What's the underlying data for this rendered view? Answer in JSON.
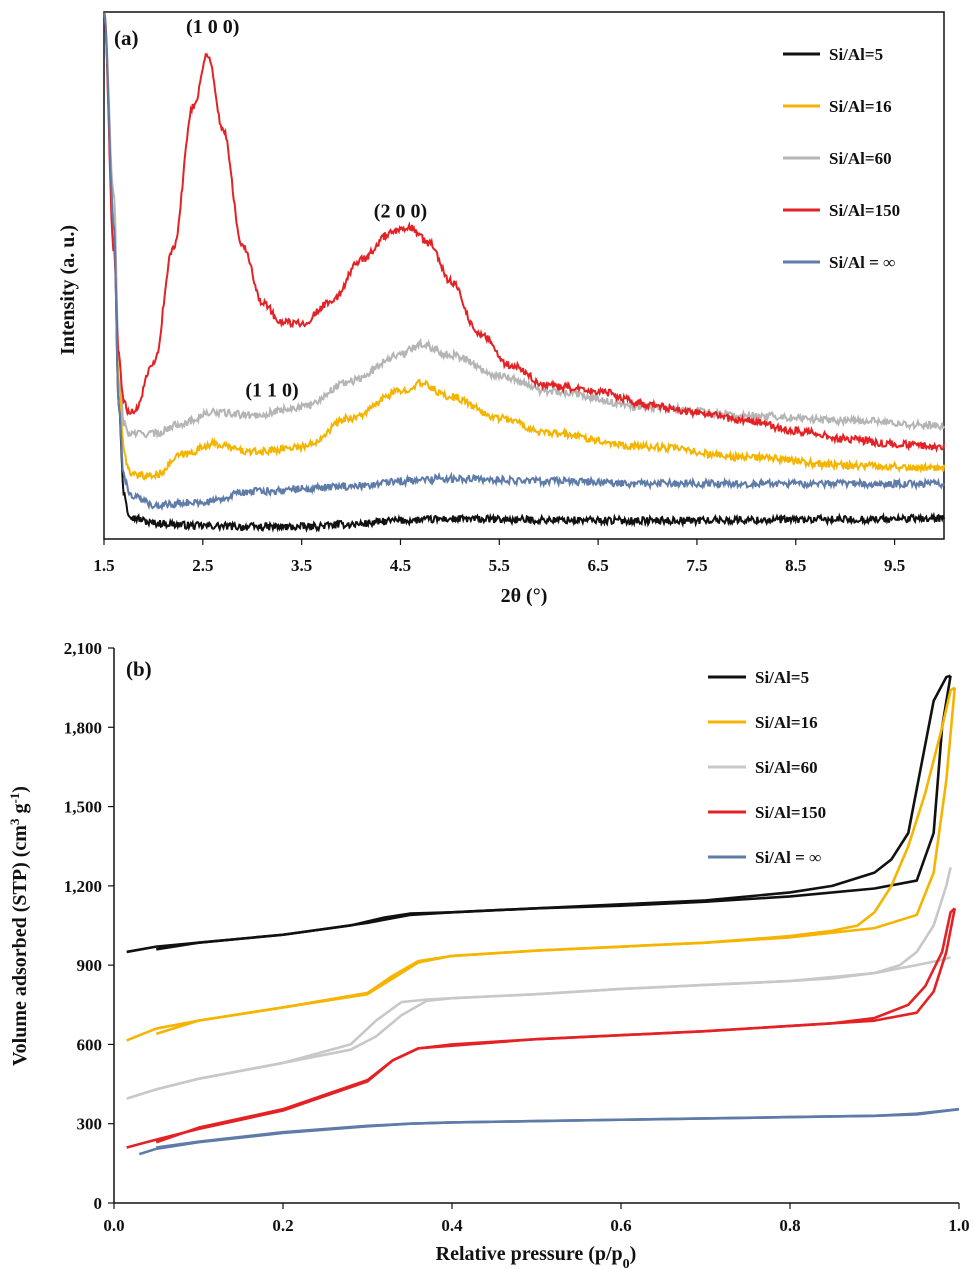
{
  "chart_data": [
    {
      "type": "line",
      "panel_label": "(a)",
      "xlabel": "2θ (°)",
      "ylabel": "Intensity (a. u.)",
      "xlim": [
        1.5,
        10
      ],
      "ylim": [
        0,
        100
      ],
      "x_ticks": [
        "1.5",
        "2.5",
        "3.5",
        "4.5",
        "5.5",
        "6.5",
        "7.5",
        "8.5",
        "9.5"
      ],
      "y_ticks": [],
      "legend_position": "top-right",
      "peak_labels": [
        {
          "text": "(1 0 0)",
          "x": 2.6,
          "y": 96
        },
        {
          "text": "(2  0 0)",
          "x": 4.5,
          "y": 61
        },
        {
          "text": "(1  1 0)",
          "x": 3.2,
          "y": 27
        }
      ],
      "series": [
        {
          "name": "Si/Al=5",
          "color": "#111111",
          "x": [
            1.5,
            1.6,
            1.65,
            1.7,
            1.75,
            1.8,
            2.0,
            2.5,
            3.0,
            3.5,
            4.0,
            4.5,
            5.0,
            6.0,
            7.0,
            8.0,
            9.0,
            10.0
          ],
          "y": [
            100,
            60,
            25,
            9,
            5,
            4,
            3,
            2.5,
            2.3,
            2.3,
            2.8,
            3.5,
            3.8,
            3.6,
            3.5,
            3.6,
            3.7,
            3.9
          ]
        },
        {
          "name": "Si/Al=16",
          "color": "#F4B400",
          "x": [
            1.5,
            1.6,
            1.65,
            1.7,
            1.75,
            1.8,
            2.0,
            2.3,
            2.6,
            3.0,
            3.5,
            4.0,
            4.5,
            4.7,
            5.0,
            5.5,
            6.0,
            7.0,
            8.0,
            9.0,
            10.0
          ],
          "y": [
            100,
            60,
            30,
            17,
            13,
            12,
            12,
            16,
            18,
            16.5,
            17.5,
            23,
            28,
            29.5,
            27,
            23,
            20,
            17.5,
            15.5,
            14,
            13.5
          ]
        },
        {
          "name": "Si/Al=60",
          "color": "#B5B5B5",
          "x": [
            1.5,
            1.6,
            1.65,
            1.7,
            1.75,
            1.8,
            2.0,
            2.3,
            2.6,
            3.0,
            3.5,
            4.0,
            4.5,
            4.7,
            5.0,
            5.5,
            6.0,
            7.0,
            8.0,
            9.0,
            10.0
          ],
          "y": [
            100,
            65,
            35,
            22,
            20,
            20,
            20,
            22,
            24,
            23.5,
            25,
            30,
            35,
            37,
            35,
            31,
            28,
            25,
            23.5,
            22.5,
            21.5
          ]
        },
        {
          "name": "Si/Al=150",
          "color": "#E32226",
          "x": [
            1.5,
            1.6,
            1.65,
            1.7,
            1.75,
            1.8,
            2.0,
            2.2,
            2.4,
            2.55,
            2.7,
            2.9,
            3.1,
            3.3,
            3.5,
            3.8,
            4.1,
            4.4,
            4.6,
            4.8,
            5.0,
            5.3,
            5.6,
            6.0,
            6.5,
            7.0,
            7.5,
            8.0,
            8.5,
            9.0,
            9.5,
            10.0
          ],
          "y": [
            100,
            55,
            35,
            26,
            24,
            24,
            33,
            55,
            82,
            92,
            78,
            56,
            45,
            41,
            41,
            45,
            53,
            58,
            59,
            56,
            49,
            39,
            33,
            29,
            28,
            25.5,
            24,
            22.5,
            20.5,
            19,
            18,
            17.5
          ]
        },
        {
          "name": "Si/Al = ∞",
          "color": "#5F7BA8",
          "x": [
            1.5,
            1.6,
            1.65,
            1.7,
            1.75,
            1.8,
            2.0,
            2.5,
            3.0,
            3.5,
            4.0,
            4.5,
            5.0,
            6.0,
            7.0,
            8.0,
            9.0,
            10.0
          ],
          "y": [
            100,
            60,
            25,
            12,
            9,
            8,
            6.5,
            7,
            9,
            9.5,
            10,
            11,
            11.5,
            11,
            10.5,
            10.5,
            10.5,
            10.5
          ]
        }
      ]
    },
    {
      "type": "line",
      "panel_label": "(b)",
      "xlabel": "Relative pressure (p/p0)",
      "ylabel": "Volume adsorbed (STP) (cm3 g-1)",
      "xlim": [
        0,
        1
      ],
      "ylim": [
        0,
        2100
      ],
      "x_ticks": [
        "0.0",
        "0.2",
        "0.4",
        "0.6",
        "0.8",
        "1.0"
      ],
      "y_ticks": [
        "0",
        "300",
        "600",
        "900",
        "1,200",
        "1,500",
        "1,800",
        "2,100"
      ],
      "y_tick_values": [
        0,
        300,
        600,
        900,
        1200,
        1500,
        1800,
        2100
      ],
      "legend_position": "top-right",
      "series": [
        {
          "name": "Si/Al=5",
          "color": "#111111",
          "adsorption": {
            "x": [
              0.015,
              0.05,
              0.1,
              0.2,
              0.28,
              0.32,
              0.35,
              0.4,
              0.5,
              0.6,
              0.7,
              0.8,
              0.9,
              0.95,
              0.97,
              0.98,
              0.99
            ],
            "y": [
              950,
              970,
              985,
              1015,
              1050,
              1080,
              1095,
              1100,
              1115,
              1125,
              1140,
              1160,
              1190,
              1220,
              1400,
              1800,
              1995
            ]
          },
          "desorption": {
            "x": [
              0.99,
              0.985,
              0.97,
              0.955,
              0.94,
              0.92,
              0.9,
              0.85,
              0.8,
              0.7,
              0.6,
              0.5,
              0.4,
              0.35,
              0.3,
              0.2,
              0.1,
              0.05
            ],
            "y": [
              1995,
              1990,
              1900,
              1650,
              1400,
              1300,
              1250,
              1200,
              1175,
              1145,
              1130,
              1115,
              1100,
              1090,
              1060,
              1015,
              985,
              960
            ]
          }
        },
        {
          "name": "Si/Al=16",
          "color": "#F4B400",
          "adsorption": {
            "x": [
              0.015,
              0.05,
              0.1,
              0.2,
              0.3,
              0.33,
              0.36,
              0.4,
              0.5,
              0.6,
              0.7,
              0.8,
              0.9,
              0.95,
              0.97,
              0.985,
              0.995
            ],
            "y": [
              615,
              660,
              690,
              740,
              790,
              850,
              910,
              935,
              955,
              970,
              985,
              1005,
              1040,
              1090,
              1250,
              1600,
              1950
            ]
          },
          "desorption": {
            "x": [
              0.995,
              0.99,
              0.98,
              0.96,
              0.94,
              0.92,
              0.9,
              0.88,
              0.85,
              0.8,
              0.7,
              0.6,
              0.5,
              0.4,
              0.36,
              0.33,
              0.3,
              0.2,
              0.1,
              0.05
            ],
            "y": [
              1950,
              1940,
              1800,
              1550,
              1350,
              1200,
              1100,
              1050,
              1030,
              1010,
              985,
              970,
              955,
              935,
              915,
              860,
              795,
              740,
              690,
              640
            ]
          }
        },
        {
          "name": "Si/Al=60",
          "color": "#C8C8C8",
          "adsorption": {
            "x": [
              0.015,
              0.05,
              0.1,
              0.2,
              0.28,
              0.31,
              0.34,
              0.37,
              0.4,
              0.5,
              0.6,
              0.7,
              0.8,
              0.9,
              0.95,
              0.98,
              0.99
            ],
            "y": [
              395,
              430,
              470,
              530,
              580,
              630,
              710,
              765,
              775,
              790,
              810,
              825,
              840,
              870,
              900,
              920,
              930
            ]
          },
          "desorption": {
            "x": [
              0.99,
              0.985,
              0.97,
              0.95,
              0.93,
              0.9,
              0.85,
              0.8,
              0.7,
              0.6,
              0.5,
              0.4,
              0.37,
              0.34,
              0.31,
              0.28,
              0.2,
              0.1,
              0.05
            ],
            "y": [
              1270,
              1200,
              1050,
              950,
              900,
              870,
              850,
              840,
              825,
              810,
              790,
              775,
              770,
              760,
              690,
              600,
              530,
              470,
              430
            ]
          }
        },
        {
          "name": "Si/Al=150",
          "color": "#E32226",
          "adsorption": {
            "x": [
              0.015,
              0.05,
              0.1,
              0.2,
              0.3,
              0.33,
              0.36,
              0.4,
              0.5,
              0.6,
              0.7,
              0.8,
              0.9,
              0.95,
              0.97,
              0.985,
              0.995
            ],
            "y": [
              210,
              240,
              280,
              350,
              460,
              540,
              585,
              595,
              620,
              635,
              650,
              670,
              690,
              720,
              800,
              950,
              1115
            ]
          },
          "desorption": {
            "x": [
              0.995,
              0.99,
              0.98,
              0.96,
              0.94,
              0.9,
              0.85,
              0.8,
              0.7,
              0.6,
              0.5,
              0.4,
              0.36,
              0.33,
              0.3,
              0.2,
              0.1,
              0.05
            ],
            "y": [
              1115,
              1100,
              950,
              820,
              750,
              700,
              680,
              670,
              650,
              635,
              620,
              600,
              585,
              540,
              465,
              355,
              285,
              230
            ]
          }
        },
        {
          "name": "Si/Al = ∞",
          "color": "#5F7BA8",
          "adsorption": {
            "x": [
              0.03,
              0.05,
              0.1,
              0.2,
              0.3,
              0.35,
              0.4,
              0.5,
              0.6,
              0.7,
              0.8,
              0.9,
              0.95,
              1.0
            ],
            "y": [
              185,
              205,
              230,
              265,
              290,
              300,
              305,
              310,
              315,
              320,
              325,
              330,
              335,
              355
            ]
          },
          "desorption": {
            "x": [
              1.0,
              0.95,
              0.9,
              0.8,
              0.7,
              0.6,
              0.5,
              0.4,
              0.35,
              0.3,
              0.2,
              0.1,
              0.05
            ],
            "y": [
              355,
              338,
              330,
              325,
              320,
              315,
              310,
              305,
              300,
              292,
              268,
              232,
              210
            ]
          }
        }
      ]
    }
  ]
}
